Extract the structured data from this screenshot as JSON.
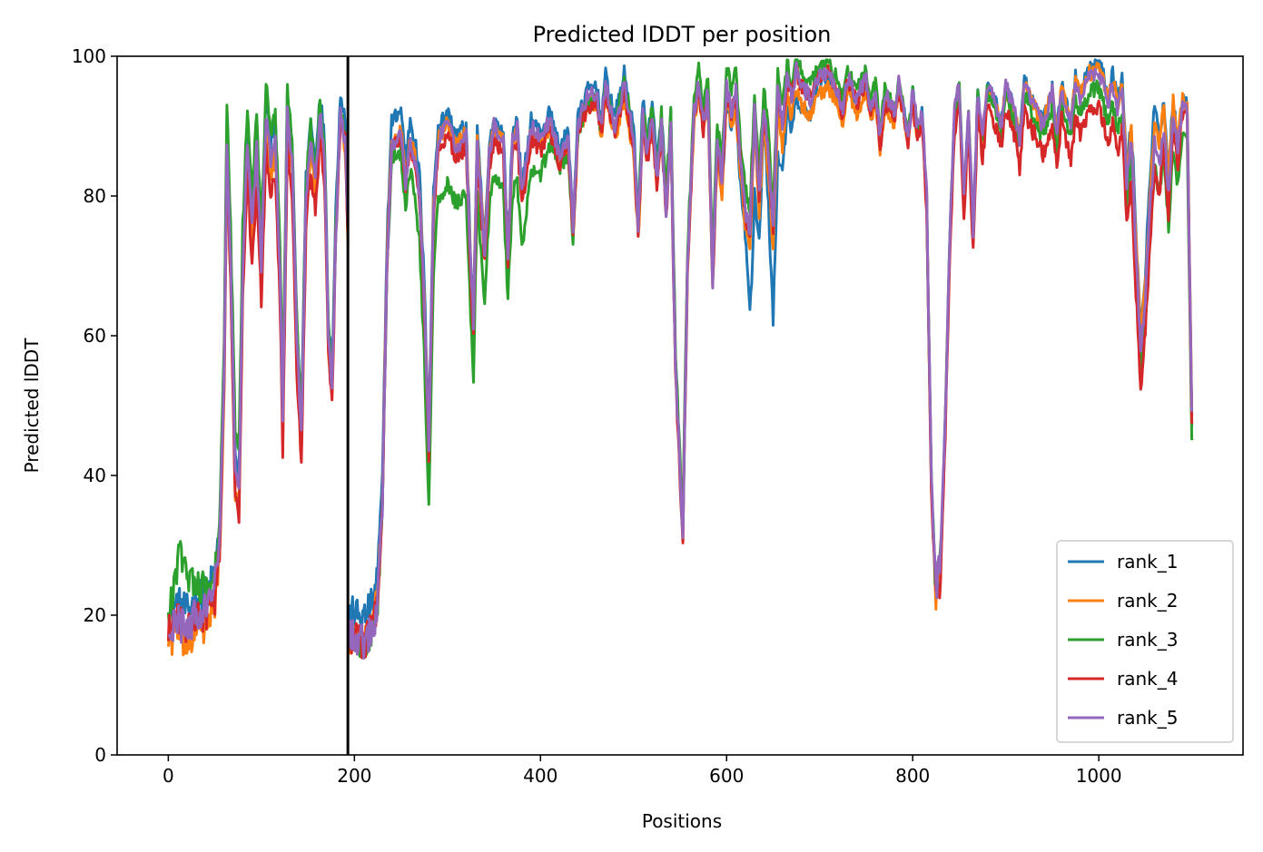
{
  "chart_data": {
    "type": "line",
    "title": "Predicted lDDT per position",
    "xlabel": "Positions",
    "ylabel": "Predicted lDDT",
    "xlim": [
      -55,
      1155
    ],
    "ylim": [
      0,
      100
    ],
    "xticks": [
      0,
      200,
      400,
      600,
      800,
      1000
    ],
    "yticks": [
      0,
      20,
      40,
      60,
      80,
      100
    ],
    "grid": false,
    "legend_position": "lower-right",
    "vline_x": 193,
    "colors": [
      "#1f77b4",
      "#ff7f0e",
      "#2ca02c",
      "#d62728",
      "#9467bd"
    ],
    "series": [
      {
        "name": "rank_1",
        "offsets": [
          [
            0,
            3
          ],
          [
            45,
            2
          ],
          [
            190,
            3
          ],
          [
            230,
            4
          ],
          [
            330,
            1
          ],
          [
            460,
            1
          ],
          [
            525,
            2
          ],
          [
            580,
            0
          ],
          [
            620,
            -4
          ],
          [
            627,
            -14
          ],
          [
            640,
            -2
          ],
          [
            650,
            -13
          ],
          [
            660,
            -6
          ],
          [
            700,
            -1
          ],
          [
            900,
            0
          ],
          [
            1030,
            2
          ],
          [
            1060,
            5
          ],
          [
            1100,
            0
          ]
        ]
      },
      {
        "name": "rank_2",
        "offsets": [
          [
            0,
            -1
          ],
          [
            45,
            -3
          ],
          [
            190,
            -1
          ],
          [
            230,
            1
          ],
          [
            500,
            -2
          ],
          [
            530,
            0
          ],
          [
            650,
            -3
          ],
          [
            1030,
            1
          ],
          [
            1070,
            3
          ],
          [
            1100,
            0
          ]
        ]
      },
      {
        "name": "rank_3",
        "offsets": [
          [
            0,
            2
          ],
          [
            12,
            10
          ],
          [
            45,
            1
          ],
          [
            70,
            6
          ],
          [
            190,
            0
          ],
          [
            230,
            0
          ],
          [
            260,
            -4
          ],
          [
            280,
            -9
          ],
          [
            365,
            -7
          ],
          [
            380,
            -8
          ],
          [
            420,
            -2
          ],
          [
            540,
            2
          ],
          [
            620,
            3
          ],
          [
            800,
            0
          ],
          [
            1050,
            -3
          ],
          [
            1080,
            -5
          ],
          [
            1100,
            -3
          ]
        ]
      },
      {
        "name": "rank_4",
        "offsets": [
          [
            0,
            1
          ],
          [
            60,
            -2
          ],
          [
            90,
            -5
          ],
          [
            120,
            -5
          ],
          [
            160,
            -4
          ],
          [
            190,
            0
          ],
          [
            230,
            0
          ],
          [
            330,
            -2
          ],
          [
            700,
            0
          ],
          [
            1040,
            -6
          ],
          [
            1100,
            0
          ]
        ]
      },
      {
        "name": "rank_5",
        "offsets": [
          [
            0,
            0
          ],
          [
            1100,
            0
          ]
        ]
      }
    ],
    "base_profile": [
      [
        0,
        17
      ],
      [
        10,
        19
      ],
      [
        20,
        18
      ],
      [
        30,
        20
      ],
      [
        40,
        21
      ],
      [
        50,
        24
      ],
      [
        55,
        30
      ],
      [
        60,
        55
      ],
      [
        63,
        88
      ],
      [
        67,
        70
      ],
      [
        72,
        40
      ],
      [
        76,
        38
      ],
      [
        80,
        70
      ],
      [
        85,
        88
      ],
      [
        90,
        75
      ],
      [
        95,
        87
      ],
      [
        100,
        70
      ],
      [
        105,
        92
      ],
      [
        110,
        85
      ],
      [
        115,
        88
      ],
      [
        120,
        70
      ],
      [
        123,
        48
      ],
      [
        128,
        92
      ],
      [
        133,
        85
      ],
      [
        138,
        60
      ],
      [
        143,
        46
      ],
      [
        148,
        80
      ],
      [
        153,
        88
      ],
      [
        158,
        82
      ],
      [
        163,
        92
      ],
      [
        168,
        85
      ],
      [
        172,
        60
      ],
      [
        176,
        52
      ],
      [
        180,
        75
      ],
      [
        185,
        92
      ],
      [
        190,
        88
      ],
      [
        193,
        75
      ],
      [
        194,
        17
      ],
      [
        200,
        17
      ],
      [
        210,
        16
      ],
      [
        220,
        18
      ],
      [
        225,
        22
      ],
      [
        230,
        35
      ],
      [
        235,
        70
      ],
      [
        240,
        87
      ],
      [
        250,
        89
      ],
      [
        255,
        82
      ],
      [
        260,
        88
      ],
      [
        265,
        85
      ],
      [
        270,
        80
      ],
      [
        275,
        65
      ],
      [
        280,
        44
      ],
      [
        285,
        78
      ],
      [
        290,
        88
      ],
      [
        300,
        90
      ],
      [
        310,
        87
      ],
      [
        320,
        89
      ],
      [
        325,
        70
      ],
      [
        328,
        62
      ],
      [
        332,
        88
      ],
      [
        340,
        72
      ],
      [
        345,
        86
      ],
      [
        350,
        90
      ],
      [
        360,
        88
      ],
      [
        365,
        72
      ],
      [
        370,
        88
      ],
      [
        375,
        90
      ],
      [
        380,
        80
      ],
      [
        390,
        90
      ],
      [
        400,
        88
      ],
      [
        410,
        91
      ],
      [
        420,
        86
      ],
      [
        430,
        88
      ],
      [
        435,
        75
      ],
      [
        440,
        90
      ],
      [
        450,
        94
      ],
      [
        460,
        95
      ],
      [
        465,
        90
      ],
      [
        470,
        96
      ],
      [
        480,
        90
      ],
      [
        490,
        96
      ],
      [
        500,
        88
      ],
      [
        505,
        75
      ],
      [
        510,
        92
      ],
      [
        515,
        86
      ],
      [
        520,
        92
      ],
      [
        525,
        82
      ],
      [
        530,
        90
      ],
      [
        535,
        78
      ],
      [
        540,
        90
      ],
      [
        545,
        56
      ],
      [
        550,
        40
      ],
      [
        553,
        32
      ],
      [
        558,
        70
      ],
      [
        565,
        92
      ],
      [
        570,
        96
      ],
      [
        575,
        90
      ],
      [
        580,
        95
      ],
      [
        585,
        68
      ],
      [
        590,
        88
      ],
      [
        595,
        82
      ],
      [
        600,
        96
      ],
      [
        605,
        92
      ],
      [
        610,
        95
      ],
      [
        615,
        85
      ],
      [
        620,
        78
      ],
      [
        625,
        75
      ],
      [
        630,
        92
      ],
      [
        635,
        80
      ],
      [
        640,
        93
      ],
      [
        645,
        86
      ],
      [
        650,
        75
      ],
      [
        655,
        95
      ],
      [
        660,
        90
      ],
      [
        665,
        97
      ],
      [
        670,
        94
      ],
      [
        675,
        98
      ],
      [
        680,
        96
      ],
      [
        690,
        94
      ],
      [
        700,
        97
      ],
      [
        710,
        98
      ],
      [
        720,
        95
      ],
      [
        725,
        92
      ],
      [
        730,
        97
      ],
      [
        740,
        94
      ],
      [
        750,
        97
      ],
      [
        755,
        92
      ],
      [
        760,
        96
      ],
      [
        765,
        88
      ],
      [
        770,
        95
      ],
      [
        780,
        92
      ],
      [
        785,
        96
      ],
      [
        790,
        93
      ],
      [
        795,
        88
      ],
      [
        800,
        95
      ],
      [
        805,
        90
      ],
      [
        810,
        92
      ],
      [
        815,
        80
      ],
      [
        820,
        40
      ],
      [
        825,
        24
      ],
      [
        830,
        28
      ],
      [
        835,
        48
      ],
      [
        840,
        75
      ],
      [
        845,
        92
      ],
      [
        850,
        96
      ],
      [
        855,
        80
      ],
      [
        860,
        92
      ],
      [
        865,
        75
      ],
      [
        870,
        95
      ],
      [
        875,
        88
      ],
      [
        880,
        96
      ],
      [
        890,
        93
      ],
      [
        895,
        90
      ],
      [
        900,
        96
      ],
      [
        910,
        92
      ],
      [
        915,
        88
      ],
      [
        920,
        96
      ],
      [
        930,
        93
      ],
      [
        940,
        90
      ],
      [
        950,
        95
      ],
      [
        955,
        88
      ],
      [
        960,
        96
      ],
      [
        965,
        92
      ],
      [
        970,
        90
      ],
      [
        975,
        96
      ],
      [
        980,
        94
      ],
      [
        990,
        97
      ],
      [
        1000,
        98
      ],
      [
        1010,
        93
      ],
      [
        1015,
        96
      ],
      [
        1020,
        92
      ],
      [
        1025,
        95
      ],
      [
        1030,
        82
      ],
      [
        1035,
        88
      ],
      [
        1040,
        72
      ],
      [
        1045,
        58
      ],
      [
        1050,
        65
      ],
      [
        1055,
        78
      ],
      [
        1060,
        88
      ],
      [
        1065,
        84
      ],
      [
        1070,
        90
      ],
      [
        1075,
        80
      ],
      [
        1080,
        92
      ],
      [
        1085,
        86
      ],
      [
        1090,
        93
      ],
      [
        1095,
        92
      ],
      [
        1100,
        48
      ]
    ]
  }
}
